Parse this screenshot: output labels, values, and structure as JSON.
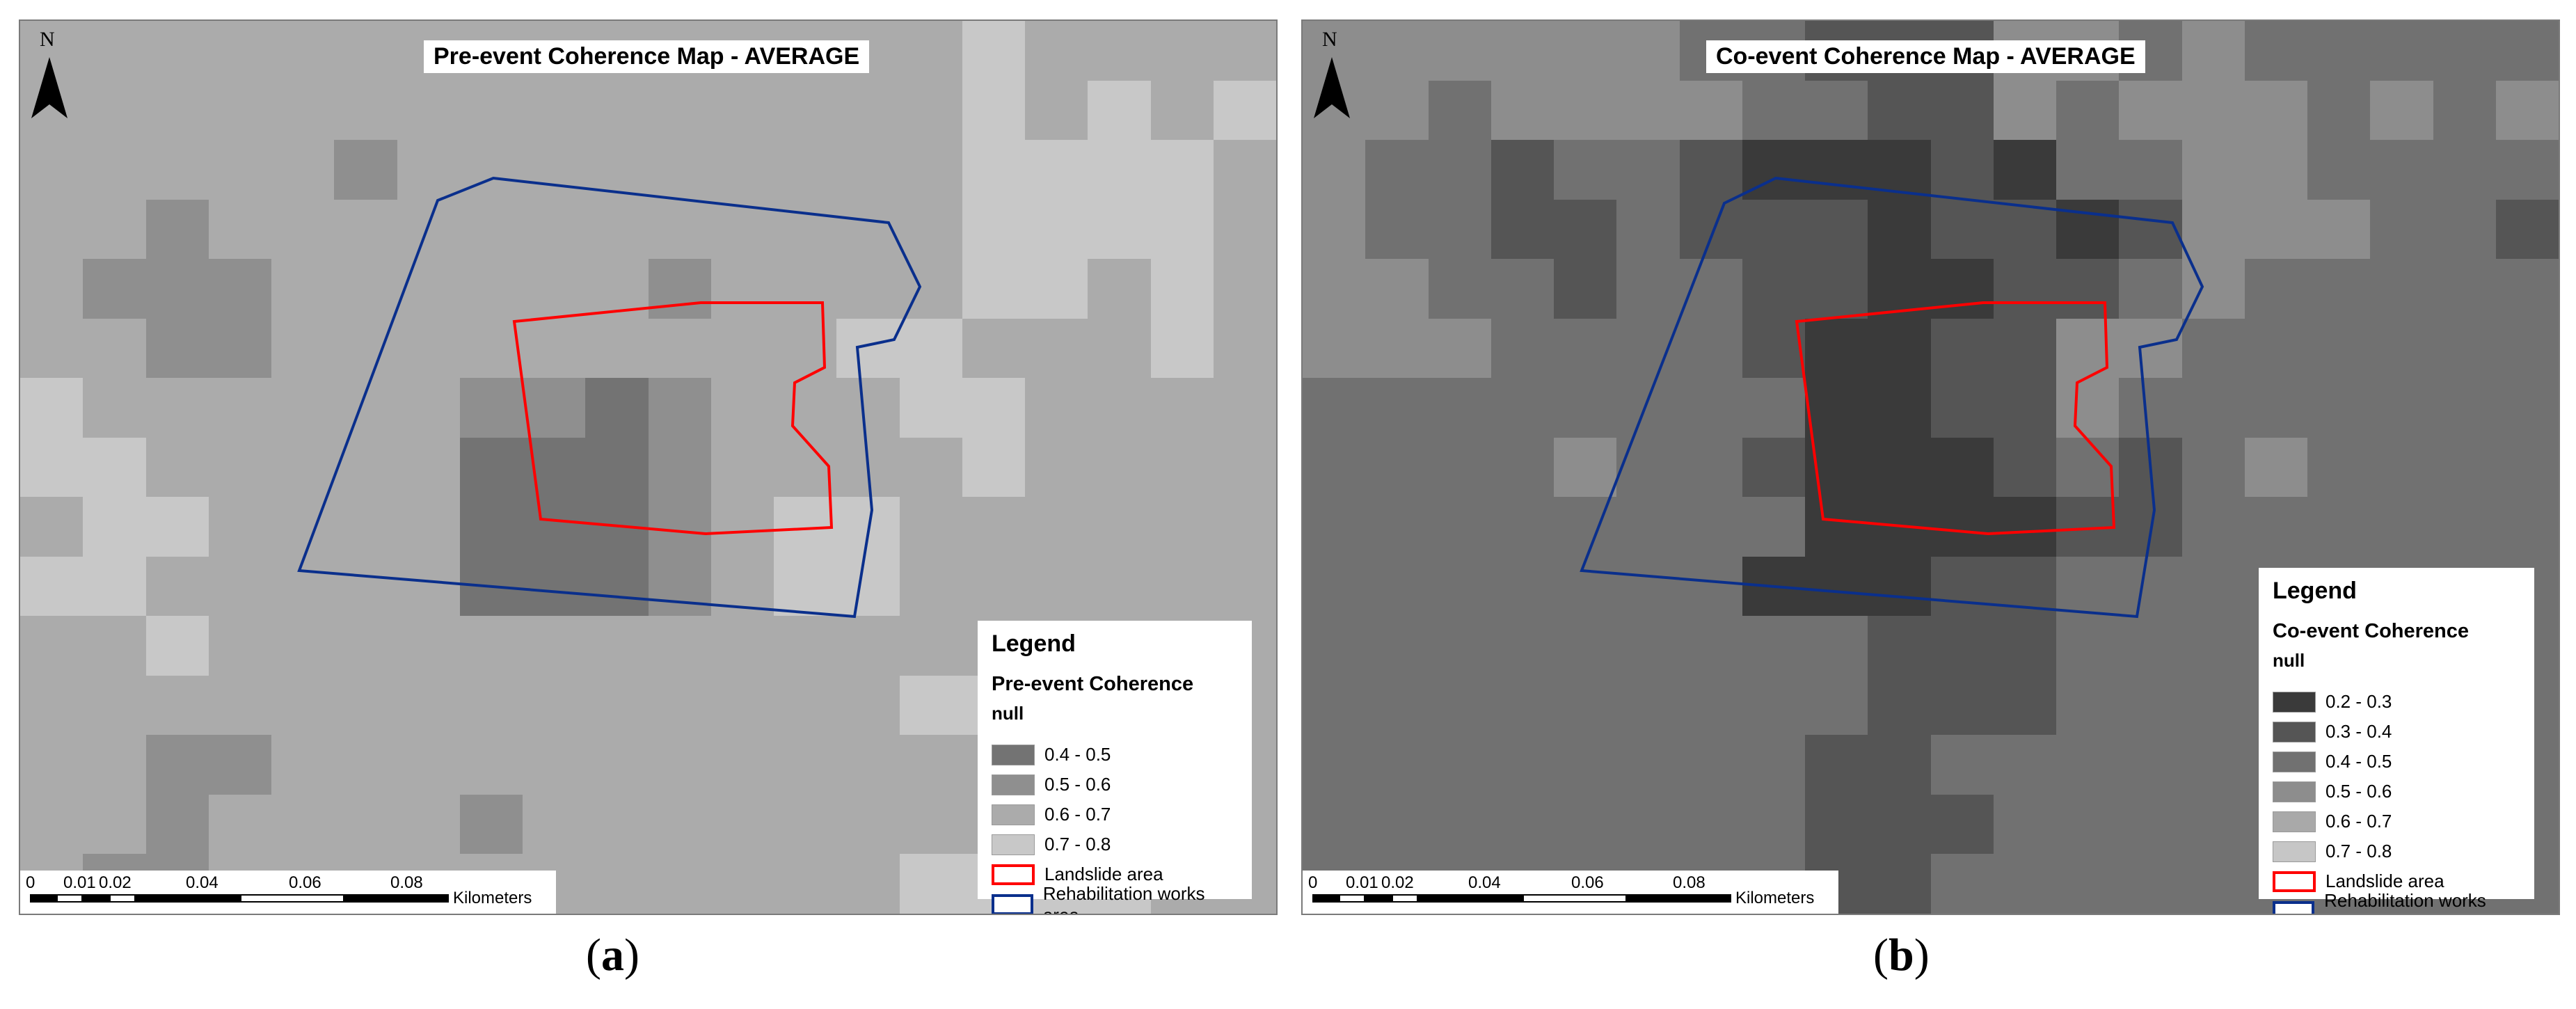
{
  "colors": {
    "pre_0_4_0_5": "#737373",
    "pre_0_5_0_6": "#8f8f8f",
    "pre_0_6_0_7": "#ababab",
    "pre_0_7_0_8": "#c8c8c8",
    "co_0_2_0_3": "#3a3a3a",
    "co_0_3_0_4": "#555555",
    "co_0_4_0_5": "#717171",
    "co_0_5_0_6": "#8d8d8d",
    "co_0_6_0_7": "#a9a9a9",
    "co_0_7_0_8": "#c6c6c6",
    "landslide_outline": "#ff0000",
    "rehabilitation_outline": "#0a2f8c"
  },
  "north_arrow": {
    "letter": "N",
    "icon": "north-arrow-icon"
  },
  "panels": [
    {
      "id": "a",
      "title": "Pre-event Coherence Map - AVERAGE",
      "caption_open": "(",
      "caption_letter": "a",
      "caption_close": ")",
      "legend": {
        "heading": "Legend",
        "subtitle": "Pre-event Coherence",
        "null_label": "null",
        "classes": [
          {
            "label": "0.4 - 0.5",
            "color": "#737373"
          },
          {
            "label": "0.5 - 0.6",
            "color": "#8f8f8f"
          },
          {
            "label": "0.6 - 0.7",
            "color": "#ababab"
          },
          {
            "label": "0.7 - 0.8",
            "color": "#c8c8c8"
          }
        ],
        "landslide_label": "Landslide area",
        "rehab_label": "Rehabilitation works area"
      },
      "scale": {
        "ticks": [
          "0",
          "0.01",
          "0.02",
          "0.04",
          "0.06",
          "0.08"
        ],
        "unit": "Kilometers"
      }
    },
    {
      "id": "b",
      "title": "Co-event Coherence Map - AVERAGE",
      "caption_open": "(",
      "caption_letter": "b",
      "caption_close": ")",
      "legend": {
        "heading": "Legend",
        "subtitle": "Co-event Coherence",
        "null_label": "null",
        "classes": [
          {
            "label": "0.2 - 0.3",
            "color": "#3a3a3a"
          },
          {
            "label": "0.3 - 0.4",
            "color": "#555555"
          },
          {
            "label": "0.4 - 0.5",
            "color": "#717171"
          },
          {
            "label": "0.5 - 0.6",
            "color": "#8d8d8d"
          },
          {
            "label": "0.6 - 0.7",
            "color": "#a9a9a9"
          },
          {
            "label": "0.7 - 0.8",
            "color": "#c6c6c6"
          }
        ],
        "landslide_label": "Landslide area",
        "rehab_label": "Rehabilitation works area"
      },
      "scale": {
        "ticks": [
          "0",
          "0.01",
          "0.02",
          "0.04",
          "0.06",
          "0.08"
        ],
        "unit": "Kilometers"
      }
    }
  ],
  "coherence_grids": {
    "pre": [
      "22222222222222232222",
      "22222222222222232323",
      "22222122222222233332",
      "22122222222222233332",
      "21112222221222233232",
      "22112222222223322232",
      "32222221101222332222",
      "33222220001222232222",
      "23322220001233222222",
      "33222220001233222222",
      "22322222222222222222",
      "22222222222222333322",
      "22112222222222223322",
      "22122221222222223322",
      "21122222222222333322"
    ],
    "co": [
      "33333322111332322222",
      "33233332211323332323",
      "32212210001022332222",
      "32211211101101333221",
      "33221221100112322222",
      "33322221001133222222",
      "22222222001132222222",
      "22223221000121232222",
      "22222222000011222222",
      "22222220001122222222",
      "22222222211122222222",
      "22222222211122222222",
      "22222222112222222222",
      "22222222111222222222",
      "22222222112222222222"
    ]
  }
}
